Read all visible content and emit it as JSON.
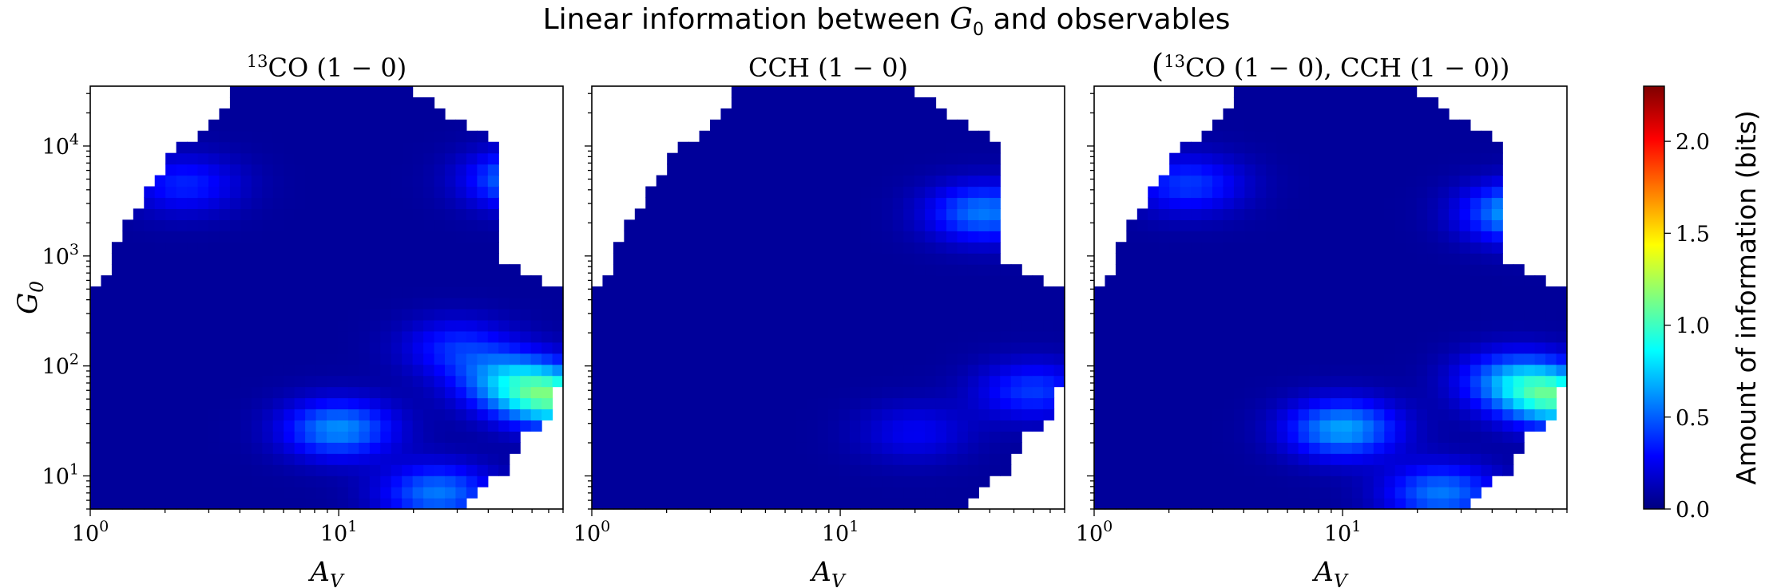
{
  "figure": {
    "title_prefix": "Linear information between",
    "title_symbol": "G",
    "title_sub": "0",
    "title_suffix": "and observables"
  },
  "colors": {
    "colormap": "jet",
    "colormap_stops": [
      "#00007f",
      "#0000ff",
      "#007fff",
      "#00ffff",
      "#7fff7f",
      "#ffff00",
      "#ff7f00",
      "#ff0000",
      "#7f0000"
    ],
    "axes_frame": "#000000",
    "background": "#ffffff"
  },
  "colorbar": {
    "label": "Amount of information (bits)",
    "range": [
      0.0,
      2.3
    ],
    "ticks": [
      "0.0",
      "0.5",
      "1.0",
      "1.5",
      "2.0"
    ],
    "tick_values": [
      0.0,
      0.5,
      1.0,
      1.5,
      2.0
    ]
  },
  "chart_data": [
    {
      "type": "heatmap",
      "title": "13CO (1 − 0)",
      "title_sup": "13",
      "title_main": "CO (1 − 0)",
      "xlabel": "A_V",
      "xlabel_main": "A",
      "xlabel_sub": "V",
      "ylabel": "G_0",
      "ylabel_main": "G",
      "ylabel_sub": "0",
      "xscale": "log",
      "yscale": "log",
      "xlim": [
        1,
        80
      ],
      "ylim": [
        5,
        35000
      ],
      "xticks": [
        {
          "base": "10",
          "exp": "0"
        },
        {
          "base": "10",
          "exp": "1"
        }
      ],
      "yticks": [
        {
          "base": "10",
          "exp": "1"
        },
        {
          "base": "10",
          "exp": "2"
        },
        {
          "base": "10",
          "exp": "3"
        },
        {
          "base": "10",
          "exp": "4"
        }
      ],
      "grid": false,
      "colorbar_range": [
        0.0,
        2.3
      ],
      "hotspots": [
        {
          "av": 75,
          "g0": 50,
          "value": 0.85
        },
        {
          "av": 55,
          "g0": 5000,
          "value": 0.55
        },
        {
          "av": 10,
          "g0": 27,
          "value": 0.55
        },
        {
          "av": 25,
          "g0": 7,
          "value": 0.5
        },
        {
          "av": 50,
          "g0": 75,
          "value": 0.55
        },
        {
          "av": 30,
          "g0": 150,
          "value": 0.3
        },
        {
          "av": 2.4,
          "g0": 4500,
          "value": 0.3
        }
      ]
    },
    {
      "type": "heatmap",
      "title": "CCH (1 − 0)",
      "title_sup": "",
      "title_main": "CCH (1 − 0)",
      "xlabel": "A_V",
      "xlabel_main": "A",
      "xlabel_sub": "V",
      "ylabel": "",
      "xscale": "log",
      "yscale": "log",
      "xlim": [
        1,
        80
      ],
      "ylim": [
        5,
        35000
      ],
      "xticks": [
        {
          "base": "10",
          "exp": "0"
        },
        {
          "base": "10",
          "exp": "1"
        }
      ],
      "yticks": [],
      "grid": false,
      "colorbar_range": [
        0.0,
        2.3
      ],
      "hotspots": [
        {
          "av": 38,
          "g0": 2500,
          "value": 0.5
        },
        {
          "av": 60,
          "g0": 60,
          "value": 0.35
        },
        {
          "av": 20,
          "g0": 25,
          "value": 0.2
        }
      ]
    },
    {
      "type": "heatmap",
      "title": "(13CO (1 − 0), CCH (1 − 0))",
      "title_sup": "13",
      "title_main": "CO (1 − 0), CCH (1 − 0))",
      "title_open": "(",
      "xlabel": "A_V",
      "xlabel_main": "A",
      "xlabel_sub": "V",
      "ylabel": "",
      "xscale": "log",
      "yscale": "log",
      "xlim": [
        1,
        80
      ],
      "ylim": [
        5,
        35000
      ],
      "xticks": [
        {
          "base": "10",
          "exp": "0"
        },
        {
          "base": "10",
          "exp": "1"
        }
      ],
      "yticks": [],
      "grid": false,
      "colorbar_range": [
        0.0,
        2.3
      ],
      "hotspots": [
        {
          "av": 75,
          "g0": 50,
          "value": 0.8
        },
        {
          "av": 52,
          "g0": 2500,
          "value": 0.65
        },
        {
          "av": 10,
          "g0": 27,
          "value": 0.6
        },
        {
          "av": 25,
          "g0": 7,
          "value": 0.5
        },
        {
          "av": 50,
          "g0": 75,
          "value": 0.55
        },
        {
          "av": 2.4,
          "g0": 4500,
          "value": 0.35
        }
      ]
    }
  ]
}
